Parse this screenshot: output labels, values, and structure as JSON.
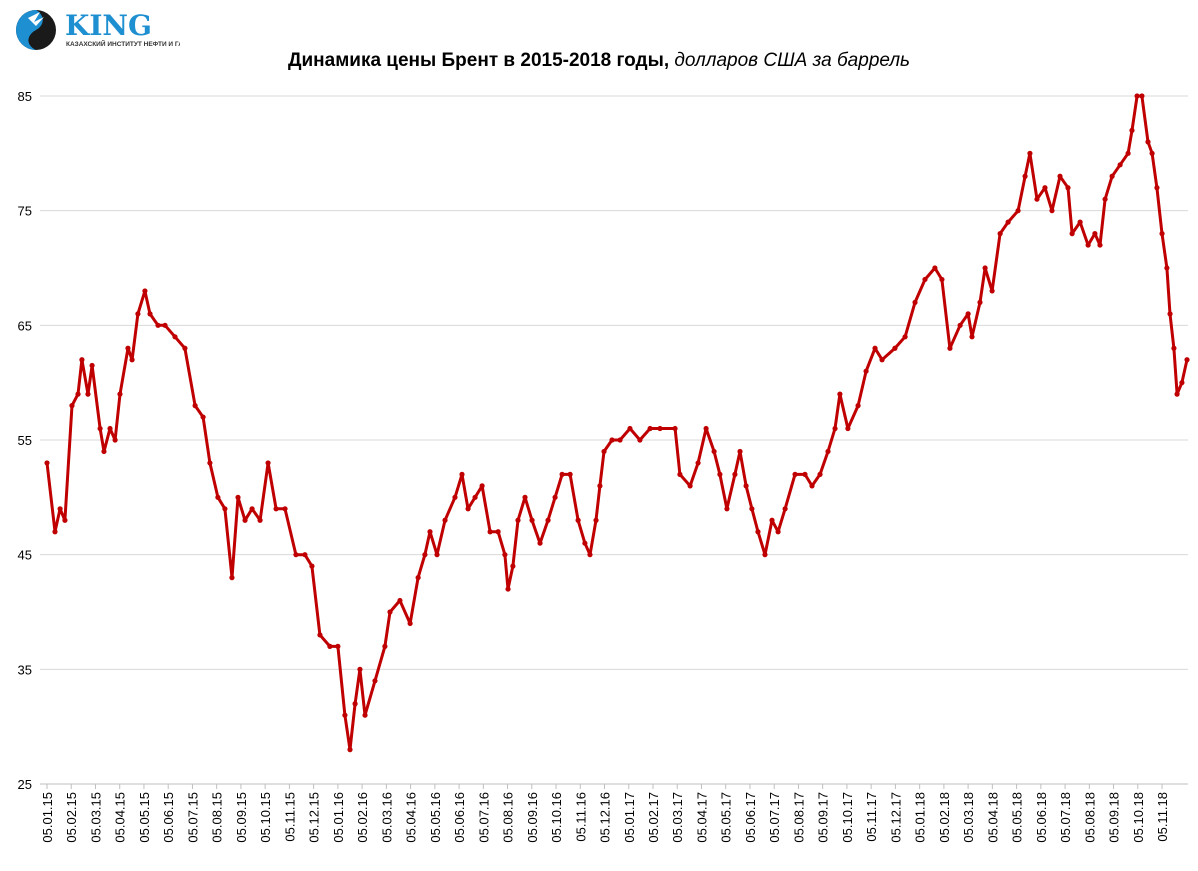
{
  "logo": {
    "name": "KING",
    "subtitle": "КАЗАХСКИЙ ИНСТИТУТ НЕФТИ И ГАЗА"
  },
  "colors": {
    "line": "#c00000",
    "grid": "#d9d9d9",
    "logo_blue": "#1e8fd0"
  },
  "chart_data": {
    "type": "line",
    "title": "Динамика цены Брент в 2015-2018 годы,",
    "subtitle": "долларов США за баррель",
    "xlabel": "",
    "ylabel": "",
    "ylim": [
      25,
      85
    ],
    "yticks": [
      25,
      35,
      45,
      55,
      65,
      75,
      85
    ],
    "grid": true,
    "x_unit": "months since 05.01.15",
    "xlim": [
      0,
      48
    ],
    "xticks": [
      "05.01.15",
      "05.02.15",
      "05.03.15",
      "05.04.15",
      "05.05.15",
      "05.06.15",
      "05.07.15",
      "05.08.15",
      "05.09.15",
      "05.10.15",
      "05.11.15",
      "05.12.15",
      "05.01.16",
      "05.02.16",
      "05.03.16",
      "05.04.16",
      "05.05.16",
      "05.06.16",
      "05.07.16",
      "05.08.16",
      "05.09.16",
      "05.10.16",
      "05.11.16",
      "05.12.16",
      "05.01.17",
      "05.02.17",
      "05.03.17",
      "05.04.17",
      "05.05.17",
      "05.06.17",
      "05.07.17",
      "05.08.17",
      "05.09.17",
      "05.10.17",
      "05.11.17",
      "05.12.17",
      "05.01.18",
      "05.02.18",
      "05.03.18",
      "05.04.18",
      "05.05.18",
      "05.06.18",
      "05.07.18",
      "05.08.18",
      "05.09.18",
      "05.10.18",
      "05.11.18"
    ],
    "series": [
      {
        "name": "Brent",
        "x": [
          0,
          0.33,
          0.54,
          0.74,
          1.03,
          1.28,
          1.44,
          1.69,
          1.86,
          2.19,
          2.35,
          2.6,
          2.81,
          3.01,
          3.34,
          3.51,
          3.75,
          4.04,
          4.25,
          4.58,
          4.87,
          5.28,
          5.69,
          6.11,
          6.44,
          6.72,
          7.05,
          7.34,
          7.63,
          7.88,
          8.17,
          8.46,
          8.79,
          9.12,
          9.45,
          9.82,
          10.27,
          10.64,
          10.93,
          11.26,
          11.67,
          12.0,
          12.29,
          12.5,
          12.71,
          12.91,
          13.12,
          13.53,
          13.94,
          14.15,
          14.56,
          14.98,
          15.31,
          15.59,
          15.8,
          16.09,
          16.42,
          16.83,
          17.12,
          17.37,
          17.66,
          17.95,
          18.28,
          18.61,
          18.89,
          19.02,
          19.22,
          19.43,
          19.72,
          20.01,
          20.34,
          20.67,
          20.96,
          21.25,
          21.58,
          21.91,
          22.19,
          22.4,
          22.65,
          22.81,
          22.98,
          23.31,
          23.64,
          24.05,
          24.46,
          24.88,
          25.29,
          25.91,
          26.11,
          26.53,
          26.86,
          27.19,
          27.52,
          27.76,
          28.05,
          28.38,
          28.59,
          28.84,
          29.08,
          29.33,
          29.62,
          29.91,
          30.16,
          30.45,
          30.86,
          31.27,
          31.56,
          31.89,
          32.22,
          32.51,
          32.71,
          33.04,
          33.46,
          33.79,
          34.16,
          34.45,
          34.98,
          35.4,
          35.81,
          36.22,
          36.63,
          36.92,
          37.25,
          37.67,
          38.0,
          38.16,
          38.49,
          38.7,
          38.99,
          39.32,
          39.65,
          40.06,
          40.35,
          40.55,
          40.84,
          41.17,
          41.46,
          41.79,
          42.12,
          42.29,
          42.62,
          42.95,
          43.23,
          43.44,
          43.65,
          43.94,
          44.27,
          44.6,
          44.76,
          44.97,
          45.17,
          45.42,
          45.59,
          45.79,
          46.0,
          46.2,
          46.33,
          46.49,
          46.62,
          46.82,
          47.03
        ],
        "values": [
          53,
          47,
          49,
          48,
          58,
          59,
          62,
          59,
          61.5,
          56,
          54,
          56,
          55,
          59,
          63,
          62,
          66,
          68,
          66,
          65,
          65,
          64,
          63,
          58,
          57,
          53,
          50,
          49,
          43,
          50,
          48,
          49,
          48,
          53,
          49,
          49,
          45,
          45,
          44,
          38,
          37,
          37,
          31,
          28,
          32,
          35,
          31,
          34,
          37,
          40,
          41,
          39,
          43,
          45,
          47,
          45,
          48,
          50,
          52,
          49,
          50,
          51,
          47,
          47,
          45,
          42,
          44,
          48,
          50,
          48,
          46,
          48,
          50,
          52,
          52,
          48,
          46,
          45,
          48,
          51,
          54,
          55,
          55,
          56,
          55,
          56,
          56,
          56,
          52,
          51,
          53,
          56,
          54,
          52,
          49,
          52,
          54,
          51,
          49,
          47,
          45,
          48,
          47,
          49,
          52,
          52,
          51,
          52,
          54,
          56,
          59,
          56,
          58,
          61,
          63,
          62,
          63,
          64,
          67,
          69,
          70,
          69,
          63,
          65,
          66,
          64,
          67,
          70,
          68,
          73,
          74,
          75,
          78,
          80,
          76,
          77,
          75,
          78,
          77,
          73,
          74,
          72,
          73,
          72,
          76,
          78,
          79,
          80,
          82,
          85,
          85,
          81,
          80,
          77,
          73,
          70,
          66,
          63,
          59,
          60,
          62
        ]
      }
    ]
  }
}
